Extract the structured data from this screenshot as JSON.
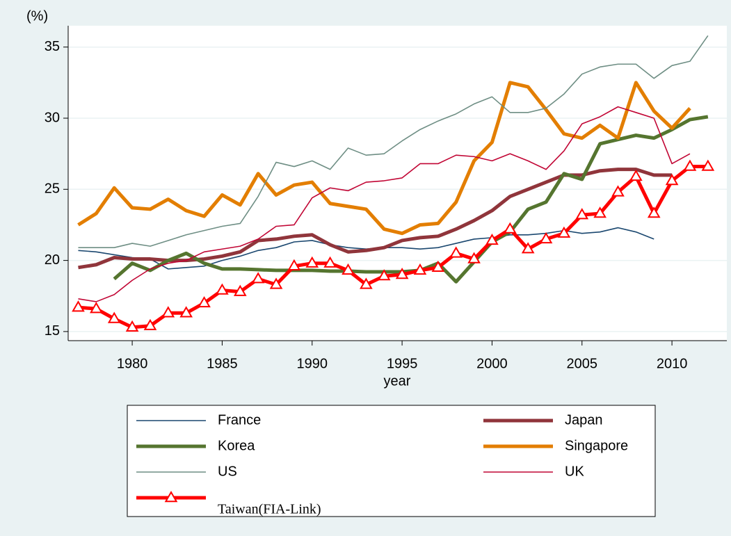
{
  "chart_data": {
    "type": "line",
    "y_label": "(%)",
    "x_label": "year",
    "x": [
      1977,
      1978,
      1979,
      1980,
      1981,
      1982,
      1983,
      1984,
      1985,
      1986,
      1987,
      1988,
      1989,
      1990,
      1991,
      1992,
      1993,
      1994,
      1995,
      1996,
      1997,
      1998,
      1999,
      2000,
      2001,
      2002,
      2003,
      2004,
      2005,
      2006,
      2007,
      2008,
      2009,
      2010,
      2011,
      2012
    ],
    "xlim": [
      1976.44,
      2013.05
    ],
    "xticks": [
      1980,
      1985,
      1990,
      1995,
      2000,
      2005,
      2010
    ],
    "ylim": [
      14.36,
      36.5
    ],
    "yticks": [
      15,
      20,
      25,
      30,
      35
    ],
    "grid": true,
    "series": [
      {
        "name": "France",
        "color": "#1a476f",
        "line_width": 1.6,
        "values": [
          20.7,
          20.6,
          20.4,
          20.2,
          20.1,
          19.4,
          19.5,
          19.6,
          20.0,
          20.3,
          20.7,
          20.9,
          21.3,
          21.4,
          21.1,
          20.9,
          20.8,
          20.9,
          20.9,
          20.8,
          20.9,
          21.2,
          21.5,
          21.6,
          21.8,
          21.8,
          21.9,
          22.1,
          21.9,
          22.0,
          22.3,
          22.0,
          21.5,
          null,
          null,
          null
        ]
      },
      {
        "name": "Japan",
        "color": "#90353b",
        "line_width": 5,
        "values": [
          19.5,
          19.7,
          20.2,
          20.1,
          20.1,
          20.0,
          20.0,
          20.1,
          20.3,
          20.6,
          21.4,
          21.5,
          21.7,
          21.8,
          21.1,
          20.6,
          20.7,
          20.9,
          21.4,
          21.6,
          21.7,
          22.2,
          22.8,
          23.5,
          24.5,
          25.0,
          25.5,
          26.0,
          26.0,
          26.3,
          26.4,
          26.4,
          26.0,
          26.0,
          null,
          null
        ]
      },
      {
        "name": "Korea",
        "color": "#55752f",
        "line_width": 5,
        "values": [
          null,
          null,
          18.7,
          19.8,
          19.3,
          20.0,
          20.5,
          19.8,
          19.4,
          19.4,
          19.35,
          19.3,
          19.3,
          19.3,
          19.25,
          19.25,
          19.2,
          19.2,
          19.2,
          19.3,
          19.8,
          18.5,
          19.9,
          21.3,
          22.0,
          23.6,
          24.1,
          26.1,
          25.7,
          28.2,
          28.5,
          28.8,
          28.6,
          29.2,
          29.9,
          30.1
        ]
      },
      {
        "name": "Singapore",
        "color": "#e37e00",
        "line_width": 5,
        "values": [
          22.5,
          23.3,
          25.1,
          23.7,
          23.6,
          24.3,
          23.5,
          23.1,
          24.6,
          23.9,
          26.1,
          24.6,
          25.3,
          25.5,
          24.0,
          23.8,
          23.6,
          22.2,
          21.9,
          22.5,
          22.6,
          24.1,
          27.0,
          28.3,
          32.5,
          32.2,
          30.6,
          28.9,
          28.6,
          29.5,
          28.6,
          32.5,
          30.5,
          29.3,
          30.7,
          null
        ]
      },
      {
        "name": "US",
        "color": "#6e8e84",
        "line_width": 1.6,
        "values": [
          20.9,
          20.9,
          20.9,
          21.2,
          21.0,
          21.4,
          21.8,
          22.1,
          22.4,
          22.6,
          24.5,
          26.9,
          26.6,
          27.0,
          26.4,
          27.9,
          27.4,
          27.5,
          28.4,
          29.2,
          29.8,
          30.3,
          31.0,
          31.5,
          30.4,
          30.4,
          30.7,
          31.7,
          33.1,
          33.6,
          33.8,
          33.8,
          32.8,
          33.7,
          34.0,
          35.8
        ]
      },
      {
        "name": "UK",
        "color": "#c10534",
        "line_width": 1.6,
        "values": [
          17.3,
          17.1,
          17.6,
          18.6,
          19.4,
          19.8,
          20.0,
          20.6,
          20.8,
          21.0,
          21.5,
          22.4,
          22.5,
          24.4,
          25.1,
          24.9,
          25.5,
          25.6,
          25.8,
          26.8,
          26.8,
          27.4,
          27.3,
          27.0,
          27.5,
          27.0,
          26.4,
          27.7,
          29.6,
          30.1,
          30.8,
          30.4,
          30.0,
          26.8,
          27.5,
          null
        ]
      },
      {
        "name": "Taiwan(FIA-Link)",
        "color": "#ff0000",
        "line_width": 5,
        "marker": "triangle",
        "values": [
          16.7,
          16.6,
          15.9,
          15.3,
          15.4,
          16.3,
          16.3,
          17.0,
          17.9,
          17.8,
          18.7,
          18.3,
          19.6,
          19.8,
          19.8,
          19.3,
          18.3,
          18.9,
          19.0,
          19.3,
          19.5,
          20.5,
          20.1,
          21.4,
          22.2,
          20.8,
          21.5,
          21.9,
          23.2,
          23.3,
          24.8,
          25.9,
          23.3,
          25.6,
          26.6,
          26.6
        ]
      }
    ]
  }
}
